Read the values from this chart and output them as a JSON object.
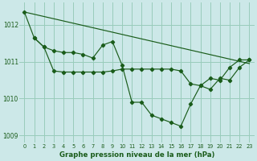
{
  "bg_color": "#cce8e8",
  "grid_color": "#99ccbb",
  "line_color": "#1a5c1a",
  "marker_color": "#1a5c1a",
  "title": "Graphe pression niveau de la mer (hPa)",
  "title_color": "#1a5c1a",
  "xlim": [
    -0.5,
    23.5
  ],
  "ylim": [
    1008.8,
    1012.6
  ],
  "xticks": [
    0,
    1,
    2,
    3,
    4,
    5,
    6,
    7,
    8,
    9,
    10,
    11,
    12,
    13,
    14,
    15,
    16,
    17,
    18,
    19,
    20,
    21,
    22,
    23
  ],
  "yticks": [
    1009,
    1010,
    1011,
    1012
  ],
  "series1_x": [
    0,
    23
  ],
  "series1_y": [
    1012.35,
    1010.95
  ],
  "series2_x": [
    0,
    1,
    2,
    3,
    4,
    5,
    6,
    7,
    8,
    9,
    10,
    11,
    12,
    13,
    14,
    15,
    16,
    17,
    18,
    19,
    20,
    21,
    22,
    23
  ],
  "series2_y": [
    1012.35,
    1011.65,
    1011.4,
    1011.3,
    1011.25,
    1011.25,
    1011.2,
    1011.1,
    1011.45,
    1011.55,
    1010.9,
    1009.9,
    1009.9,
    1009.55,
    1009.45,
    1009.35,
    1009.25,
    1009.85,
    1010.35,
    1010.25,
    1010.55,
    1010.5,
    1010.85,
    1011.05
  ],
  "series3_x": [
    1,
    2,
    3,
    4,
    5,
    6,
    7,
    8,
    9,
    10,
    11,
    12,
    13,
    14,
    15,
    16,
    17,
    18,
    19,
    20,
    21,
    22,
    23
  ],
  "series3_y": [
    1011.65,
    1011.4,
    1010.75,
    1010.72,
    1010.72,
    1010.72,
    1010.72,
    1010.72,
    1010.75,
    1010.8,
    1010.8,
    1010.8,
    1010.8,
    1010.8,
    1010.8,
    1010.75,
    1010.4,
    1010.35,
    1010.55,
    1010.5,
    1010.85,
    1011.05,
    1011.05
  ]
}
